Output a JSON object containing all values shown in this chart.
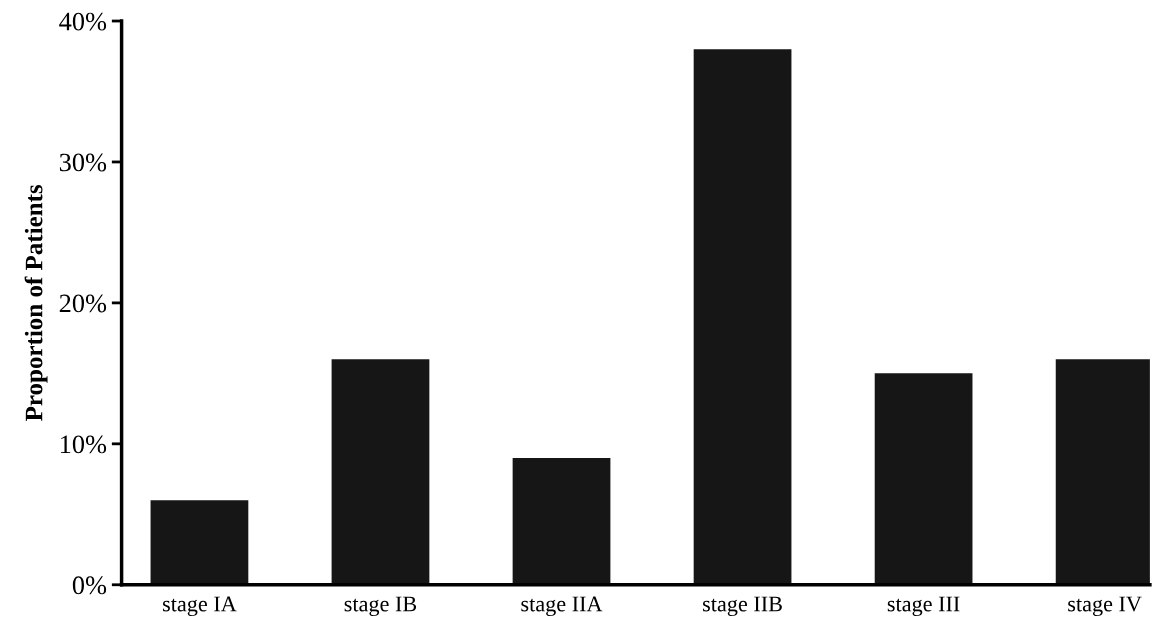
{
  "chart_data": {
    "type": "bar",
    "ylabel": "Proportion of Patients",
    "categories": [
      "stage IA",
      "stage IB",
      "stage IIA",
      "stage IIB",
      "stage III",
      "stage IV"
    ],
    "values": [
      6,
      16,
      9,
      38,
      15,
      16
    ],
    "color": "#161616",
    "ylim": [
      0,
      40
    ],
    "yticks": [
      {
        "value": 0,
        "label": "0%"
      },
      {
        "value": 10,
        "label": "10%"
      },
      {
        "value": 20,
        "label": "20%"
      },
      {
        "value": 30,
        "label": "30%"
      },
      {
        "value": 40,
        "label": "40%"
      }
    ],
    "grid": false
  }
}
